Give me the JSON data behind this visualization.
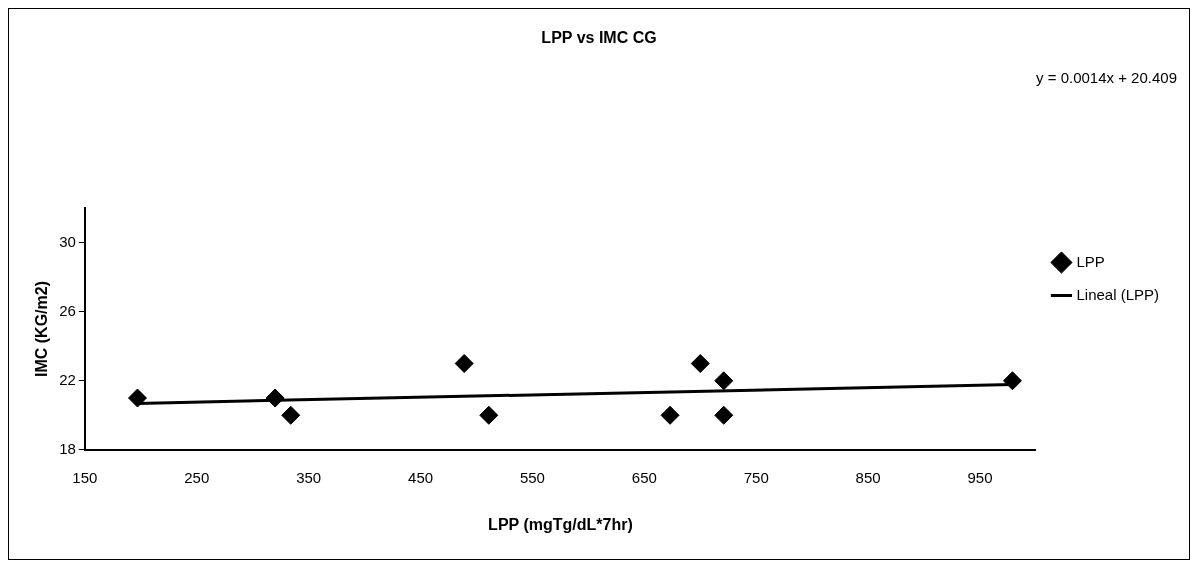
{
  "chart_data": {
    "type": "scatter",
    "title": "LPP vs IMC CG",
    "xlabel": "LPP (mgTg/dL*7hr)",
    "ylabel": "IMC (KG/m2)",
    "annotations": [
      "y = 0.0014x + 20.409"
    ],
    "xlim": [
      150,
      1000
    ],
    "xticks": [
      150,
      250,
      350,
      450,
      550,
      650,
      750,
      850,
      950
    ],
    "ylim": [
      18,
      32
    ],
    "yticks": [
      18,
      22,
      26,
      30
    ],
    "grid": false,
    "legend": "right",
    "series": [
      {
        "name": "LPP",
        "marker": "diamond",
        "color": "#000000",
        "x": [
          197,
          320,
          334,
          489,
          511,
          673,
          700,
          721,
          721,
          979
        ],
        "values": [
          21,
          21,
          20,
          23,
          20,
          20,
          23,
          22,
          20,
          22
        ]
      },
      {
        "name": "Lineal (LPP)",
        "type": "line",
        "marker": "none",
        "color": "#000000",
        "x": [
          197,
          979
        ],
        "values": [
          20.69,
          21.78
        ]
      }
    ]
  }
}
